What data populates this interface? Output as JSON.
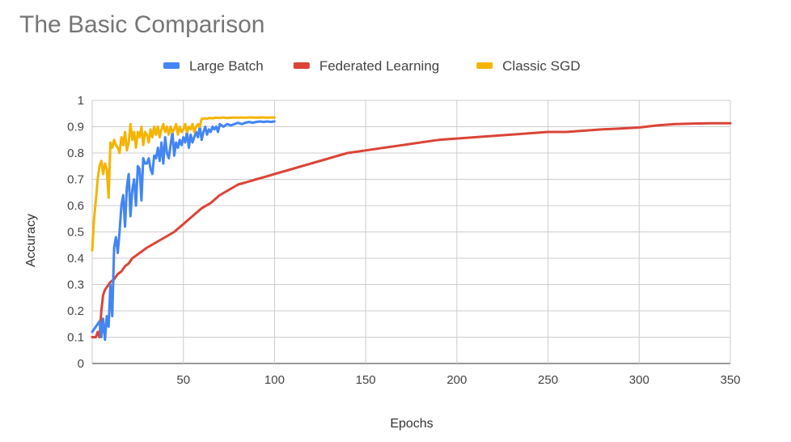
{
  "chart_data": {
    "type": "line",
    "title": "The Basic Comparison",
    "xlabel": "Epochs",
    "ylabel": "Accuracy",
    "xlim": [
      0,
      350
    ],
    "ylim": [
      0,
      1
    ],
    "x_ticks": [
      50,
      100,
      150,
      200,
      250,
      300,
      350
    ],
    "y_ticks": [
      0,
      0.1,
      0.2,
      0.3,
      0.4,
      0.5,
      0.6,
      0.7,
      0.8,
      0.9,
      1
    ],
    "grid": true,
    "legend_position": "top",
    "series": [
      {
        "name": "Large Batch",
        "color": "#4285f4",
        "x": [
          0,
          2,
          4,
          5,
          6,
          7,
          8,
          9,
          10,
          11,
          12,
          13,
          14,
          15,
          16,
          17,
          18,
          19,
          20,
          21,
          22,
          23,
          24,
          25,
          26,
          27,
          28,
          29,
          30,
          31,
          32,
          33,
          34,
          35,
          36,
          37,
          38,
          39,
          40,
          41,
          42,
          43,
          44,
          45,
          46,
          47,
          48,
          49,
          50,
          51,
          52,
          53,
          54,
          55,
          56,
          57,
          58,
          59,
          60,
          61,
          62,
          63,
          64,
          65,
          66,
          67,
          68,
          69,
          70,
          72,
          74,
          76,
          78,
          80,
          82,
          84,
          86,
          88,
          90,
          92,
          94,
          96,
          98,
          100
        ],
        "y": [
          0.12,
          0.14,
          0.16,
          0.1,
          0.17,
          0.09,
          0.18,
          0.14,
          0.3,
          0.18,
          0.44,
          0.48,
          0.42,
          0.5,
          0.6,
          0.64,
          0.52,
          0.67,
          0.72,
          0.56,
          0.66,
          0.7,
          0.6,
          0.75,
          0.74,
          0.62,
          0.78,
          0.76,
          0.76,
          0.78,
          0.74,
          0.72,
          0.79,
          0.78,
          0.82,
          0.77,
          0.84,
          0.76,
          0.86,
          0.8,
          0.78,
          0.83,
          0.88,
          0.79,
          0.84,
          0.82,
          0.85,
          0.83,
          0.86,
          0.84,
          0.88,
          0.82,
          0.87,
          0.84,
          0.86,
          0.88,
          0.86,
          0.9,
          0.85,
          0.88,
          0.9,
          0.87,
          0.89,
          0.88,
          0.9,
          0.89,
          0.9,
          0.88,
          0.91,
          0.9,
          0.91,
          0.905,
          0.91,
          0.915,
          0.91,
          0.915,
          0.918,
          0.915,
          0.918,
          0.92,
          0.918,
          0.92,
          0.918,
          0.92
        ]
      },
      {
        "name": "Federated Learning",
        "color": "#db4437",
        "x": [
          0,
          2,
          3,
          4,
          5,
          6,
          7,
          8,
          9,
          10,
          12,
          14,
          16,
          18,
          20,
          22,
          24,
          26,
          28,
          30,
          35,
          40,
          45,
          50,
          55,
          60,
          65,
          70,
          75,
          80,
          85,
          90,
          95,
          100,
          110,
          120,
          130,
          140,
          150,
          160,
          170,
          180,
          190,
          200,
          210,
          220,
          230,
          240,
          250,
          260,
          270,
          280,
          290,
          300,
          310,
          320,
          330,
          340,
          350
        ],
        "y": [
          0.1,
          0.1,
          0.12,
          0.1,
          0.2,
          0.26,
          0.28,
          0.29,
          0.3,
          0.31,
          0.32,
          0.34,
          0.35,
          0.37,
          0.38,
          0.4,
          0.41,
          0.42,
          0.43,
          0.44,
          0.46,
          0.48,
          0.5,
          0.53,
          0.56,
          0.59,
          0.61,
          0.64,
          0.66,
          0.68,
          0.69,
          0.7,
          0.71,
          0.72,
          0.74,
          0.76,
          0.78,
          0.8,
          0.81,
          0.82,
          0.83,
          0.84,
          0.85,
          0.855,
          0.86,
          0.865,
          0.87,
          0.875,
          0.88,
          0.88,
          0.885,
          0.89,
          0.893,
          0.897,
          0.905,
          0.91,
          0.912,
          0.913,
          0.913
        ]
      },
      {
        "name": "Classic SGD",
        "color": "#f4b400",
        "x": [
          0,
          1,
          2,
          3,
          4,
          5,
          6,
          7,
          8,
          9,
          10,
          11,
          12,
          13,
          14,
          15,
          16,
          17,
          18,
          19,
          20,
          21,
          22,
          23,
          24,
          25,
          26,
          27,
          28,
          29,
          30,
          31,
          32,
          33,
          34,
          35,
          36,
          37,
          38,
          39,
          40,
          41,
          42,
          43,
          44,
          45,
          46,
          47,
          48,
          49,
          50,
          51,
          52,
          53,
          54,
          55,
          56,
          57,
          58,
          59,
          60,
          61,
          62,
          63,
          64,
          66,
          68,
          70,
          72,
          74,
          76,
          78,
          80,
          82,
          84,
          86,
          88,
          90,
          92,
          94,
          96,
          98,
          100
        ],
        "y": [
          0.43,
          0.55,
          0.62,
          0.7,
          0.75,
          0.77,
          0.72,
          0.76,
          0.74,
          0.63,
          0.84,
          0.82,
          0.85,
          0.83,
          0.82,
          0.8,
          0.86,
          0.83,
          0.88,
          0.81,
          0.84,
          0.91,
          0.85,
          0.88,
          0.82,
          0.88,
          0.86,
          0.9,
          0.83,
          0.88,
          0.87,
          0.84,
          0.89,
          0.86,
          0.9,
          0.87,
          0.9,
          0.86,
          0.89,
          0.91,
          0.88,
          0.9,
          0.87,
          0.9,
          0.88,
          0.89,
          0.91,
          0.87,
          0.9,
          0.88,
          0.89,
          0.91,
          0.88,
          0.9,
          0.89,
          0.91,
          0.88,
          0.9,
          0.91,
          0.9,
          0.93,
          0.93,
          0.932,
          0.93,
          0.933,
          0.932,
          0.934,
          0.933,
          0.935,
          0.933,
          0.934,
          0.935,
          0.934,
          0.935,
          0.934,
          0.935,
          0.935,
          0.934,
          0.935,
          0.935,
          0.934,
          0.935,
          0.935
        ]
      }
    ]
  }
}
